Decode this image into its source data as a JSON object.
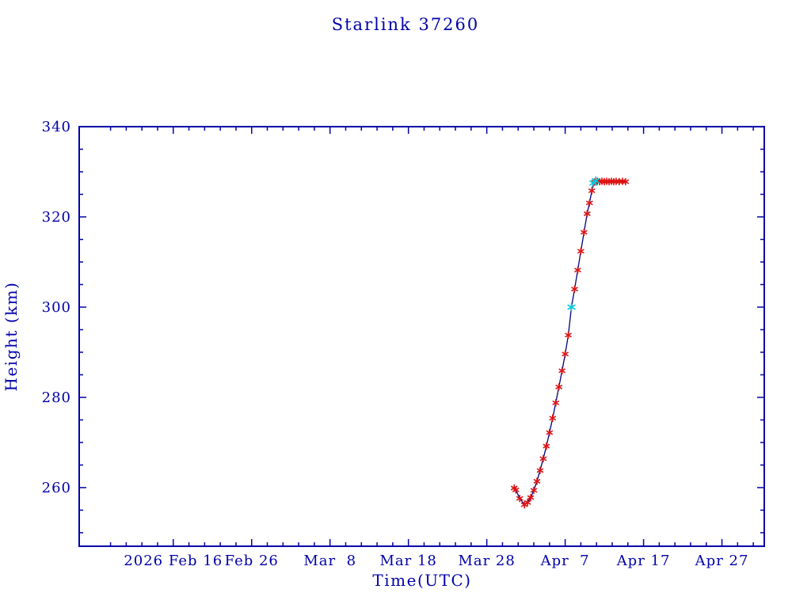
{
  "window": {
    "background": "#FFFFFF"
  },
  "chart_data": {
    "type": "line",
    "title": "Starlink 37260",
    "xlabel": "Time(UTC)",
    "ylabel": "Height (km)",
    "grid": false,
    "legend": null,
    "colors": {
      "axis": "#0000A8",
      "text": "#0000A8",
      "line": "#000080",
      "marker_red": "#DC1414",
      "marker_cyan": "#00C8DC",
      "background": "#FFFFFF"
    },
    "x_axis": {
      "unit": "days since 2026 Feb 16 00:00 UTC",
      "lim": [
        -12,
        75.4
      ],
      "minor_tick_step_days": 2,
      "major_ticks": [
        {
          "day": 0,
          "label": "2026 Feb 16"
        },
        {
          "day": 10,
          "label": "Feb 26"
        },
        {
          "day": 20,
          "label": "Mar  8"
        },
        {
          "day": 30,
          "label": "Mar 18"
        },
        {
          "day": 40,
          "label": "Mar 28"
        },
        {
          "day": 50,
          "label": "Apr  7"
        },
        {
          "day": 60,
          "label": "Apr 17"
        },
        {
          "day": 70,
          "label": "Apr 27"
        }
      ]
    },
    "y_axis": {
      "lim": [
        247,
        340
      ],
      "minor_tick_step": 5,
      "major_ticks": [
        260,
        280,
        300,
        320,
        340
      ]
    },
    "series": [
      {
        "name": "height-observations",
        "marker": "asterisk",
        "color_key": "marker_red",
        "marker_radius_px": 4,
        "points": [
          [
            43.5,
            259.9
          ],
          [
            43.7,
            259.5
          ],
          [
            44.2,
            257.6
          ],
          [
            44.8,
            256.2
          ],
          [
            45.2,
            256.7
          ],
          [
            45.6,
            257.8
          ],
          [
            46.0,
            259.4
          ],
          [
            46.4,
            261.4
          ],
          [
            46.8,
            263.8
          ],
          [
            47.2,
            266.4
          ],
          [
            47.6,
            269.2
          ],
          [
            48.0,
            272.2
          ],
          [
            48.4,
            275.4
          ],
          [
            48.8,
            278.8
          ],
          [
            49.2,
            282.3
          ],
          [
            49.6,
            285.9
          ],
          [
            50.0,
            289.6
          ],
          [
            50.4,
            293.8
          ],
          [
            51.2,
            304.0
          ],
          [
            51.6,
            308.2
          ],
          [
            52.0,
            312.4
          ],
          [
            52.4,
            316.6
          ],
          [
            52.8,
            320.7
          ],
          [
            53.1,
            323.1
          ],
          [
            53.4,
            325.8
          ],
          [
            53.75,
            327.7
          ],
          [
            54.1,
            327.9
          ],
          [
            54.4,
            327.8
          ],
          [
            54.7,
            327.9
          ],
          [
            55.0,
            327.8
          ],
          [
            55.3,
            327.9
          ],
          [
            55.6,
            327.8
          ],
          [
            55.9,
            327.9
          ],
          [
            56.2,
            327.8
          ],
          [
            56.5,
            327.9
          ],
          [
            56.9,
            327.8
          ],
          [
            57.3,
            327.9
          ],
          [
            57.7,
            327.8
          ]
        ]
      },
      {
        "name": "highlighted-observations",
        "marker": "asterisk",
        "color_key": "marker_cyan",
        "marker_radius_px": 5,
        "points": [
          [
            50.8,
            300.0
          ],
          [
            53.6,
            327.5
          ],
          [
            53.9,
            328.0
          ]
        ]
      }
    ]
  }
}
